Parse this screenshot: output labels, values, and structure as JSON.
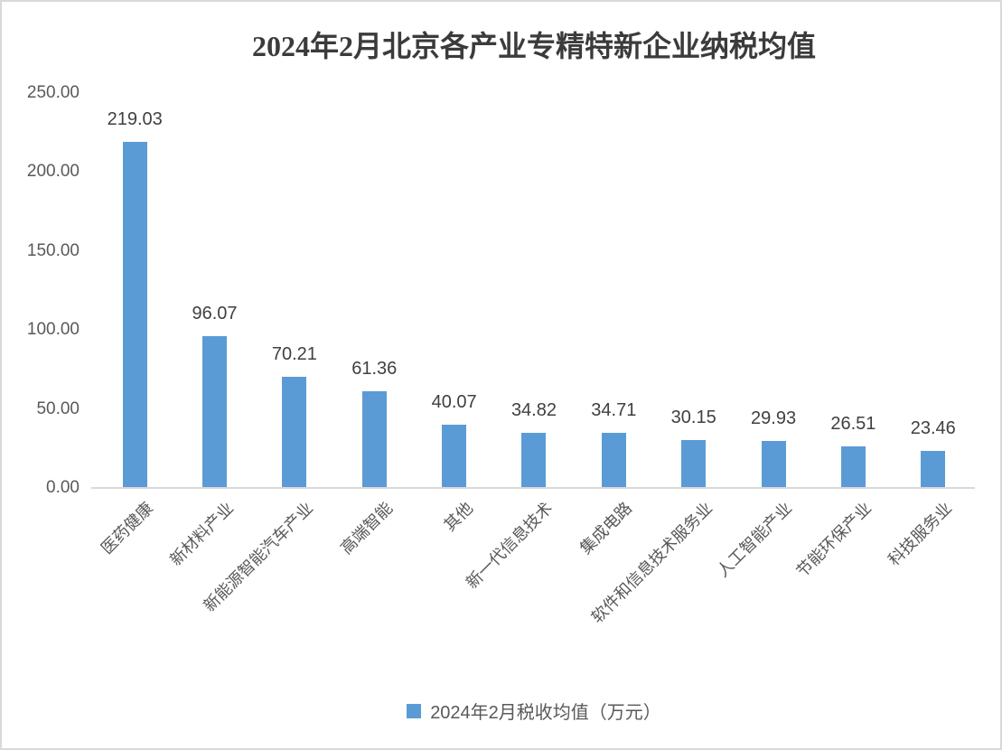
{
  "chart_data": {
    "type": "bar",
    "title": "2024年2月北京各产业专精特新企业纳税均值",
    "categories": [
      "医药健康",
      "新材料产业",
      "新能源智能汽车产业",
      "高端智能",
      "其他",
      "新一代信息技术",
      "集成电路",
      "软件和信息技术服务业",
      "人工智能产业",
      "节能环保产业",
      "科技服务业"
    ],
    "series": [
      {
        "name": "2024年2月税收均值（万元）",
        "values": [
          219.03,
          96.07,
          70.21,
          61.36,
          40.07,
          34.82,
          34.71,
          30.15,
          29.93,
          26.51,
          23.46
        ],
        "color": "#5B9BD5"
      }
    ],
    "value_labels": [
      "219.03",
      "96.07",
      "70.21",
      "61.36",
      "40.07",
      "34.82",
      "34.71",
      "30.15",
      "29.93",
      "26.51",
      "23.46"
    ],
    "xlabel": "",
    "ylabel": "",
    "ylim": [
      0,
      250
    ],
    "yticks": [
      {
        "value": 0,
        "label": "0.00"
      },
      {
        "value": 50,
        "label": "50.00"
      },
      {
        "value": 100,
        "label": "100.00"
      },
      {
        "value": 150,
        "label": "150.00"
      },
      {
        "value": 200,
        "label": "200.00"
      },
      {
        "value": 250,
        "label": "250.00"
      }
    ],
    "grid": false,
    "legend_position": "bottom"
  },
  "colors": {
    "bar": "#5B9BD5",
    "title_text": "#3B3B3B",
    "data_label_text": "#404040",
    "axis_text": "#595959",
    "axis_line": "#D9D9D9",
    "frame_border": "#D9D9D9",
    "background": "#FFFFFF"
  }
}
